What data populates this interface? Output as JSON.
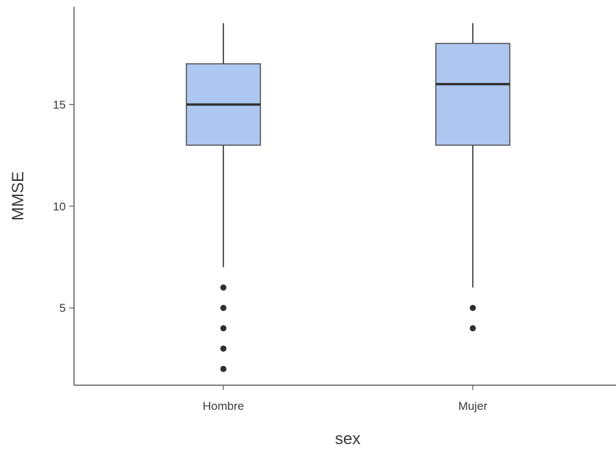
{
  "chart_data": {
    "type": "boxplot",
    "title": "",
    "xlabel": "sex",
    "ylabel": "MMSE",
    "ylim": [
      1.2,
      19.8
    ],
    "yticks": [
      5,
      10,
      15
    ],
    "grid": false,
    "legend": "none",
    "colors": {
      "box_fill": "#aec7f0",
      "box_stroke": "#4a4a4a",
      "line": "#555555",
      "outlier": "#2f2f2f",
      "axis": "#555555"
    },
    "categories": [
      "Hombre",
      "Mujer"
    ],
    "boxes": [
      {
        "category": "Hombre",
        "whisker_low": 7,
        "q1": 13,
        "median": 15,
        "q3": 17,
        "whisker_high": 19,
        "outliers": [
          6,
          5,
          4,
          3,
          2
        ]
      },
      {
        "category": "Mujer",
        "whisker_low": 6,
        "q1": 13,
        "median": 16,
        "q3": 18,
        "whisker_high": 19,
        "outliers": [
          5,
          4
        ]
      }
    ]
  }
}
